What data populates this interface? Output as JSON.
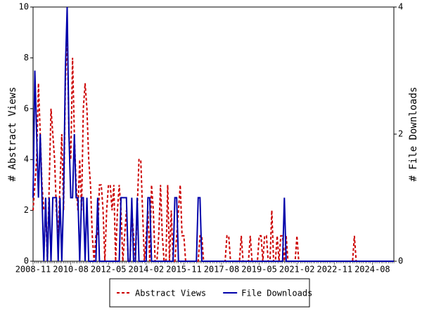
{
  "chart_data": {
    "type": "line",
    "categories": [
      "2008-11",
      null,
      null,
      null,
      null,
      null,
      null,
      null,
      null,
      null,
      null,
      null,
      null,
      null,
      null,
      null,
      null,
      null,
      null,
      null,
      null,
      "2010-08",
      null,
      null,
      null,
      null,
      null,
      null,
      null,
      null,
      null,
      null,
      null,
      null,
      null,
      null,
      null,
      null,
      null,
      null,
      null,
      null,
      "2012-05",
      null,
      null,
      null,
      null,
      null,
      null,
      null,
      null,
      null,
      null,
      null,
      null,
      null,
      null,
      null,
      null,
      null,
      null,
      null,
      null,
      "2014-02",
      null,
      null,
      null,
      null,
      null,
      null,
      null,
      null,
      null,
      null,
      null,
      null,
      null,
      null,
      null,
      null,
      null,
      null,
      null,
      null,
      "2015-11",
      null,
      null,
      null,
      null,
      null,
      null,
      null,
      null,
      null,
      null,
      null,
      null,
      null,
      null,
      null,
      null,
      null,
      null,
      null,
      null,
      "2017-08",
      null,
      null,
      null,
      null,
      null,
      null,
      null,
      null,
      null,
      null,
      null,
      null,
      null,
      null,
      null,
      null,
      null,
      null,
      null,
      null,
      "2019-05",
      null,
      null,
      null,
      null,
      null,
      null,
      null,
      null,
      null,
      null,
      null,
      null,
      null,
      null,
      null,
      null,
      null,
      null,
      null,
      null,
      "2021-02",
      null,
      null,
      null,
      null,
      null,
      null,
      null,
      null,
      null,
      null,
      null,
      null,
      null,
      null,
      null,
      null,
      null,
      null,
      null,
      null,
      "2022-11",
      null,
      null,
      null,
      null,
      null,
      null,
      null,
      null,
      null,
      null,
      null,
      null,
      null,
      null,
      null,
      null,
      null,
      null,
      null,
      null,
      "2024-08",
      null,
      null,
      null,
      null,
      null,
      null,
      null,
      null,
      null,
      null,
      null,
      null
    ],
    "series": [
      {
        "name": "Abstract Views",
        "color": "#cc0000",
        "dash": true,
        "values": [
          2,
          3,
          4,
          7,
          5,
          3,
          2,
          2,
          0,
          3,
          6,
          5,
          4,
          2,
          1,
          3,
          5,
          2,
          7,
          9,
          5,
          4,
          8,
          5,
          3,
          2,
          4,
          2,
          6,
          7,
          6,
          4,
          3,
          1,
          0,
          1,
          1,
          3,
          3,
          2,
          0,
          2,
          3,
          3,
          2,
          3,
          0,
          2,
          3,
          2,
          0,
          1,
          2,
          0,
          0,
          2,
          1,
          0,
          2,
          4,
          4,
          2,
          0,
          1,
          2,
          0,
          3,
          2,
          0,
          0,
          1,
          3,
          1,
          0,
          0,
          3,
          0,
          2,
          0,
          0,
          1,
          2,
          3,
          1,
          1,
          0,
          0,
          0,
          0,
          0,
          0,
          0,
          0,
          1,
          1,
          0,
          0,
          0,
          0,
          0,
          0,
          0,
          0,
          0,
          0,
          0,
          0,
          0,
          1,
          1,
          0,
          0,
          0,
          0,
          0,
          0,
          1,
          0,
          0,
          0,
          0,
          1,
          0,
          0,
          0,
          0,
          1,
          1,
          0,
          1,
          1,
          0,
          0,
          2,
          0,
          0,
          1,
          0,
          1,
          1,
          0,
          1,
          0,
          0,
          0,
          0,
          0,
          1,
          0,
          0,
          0,
          0,
          0,
          0,
          0,
          0,
          0,
          0,
          0,
          0,
          0,
          0,
          0,
          0,
          0,
          0,
          0,
          0,
          0,
          0,
          0,
          0,
          0,
          0,
          0,
          0,
          0,
          0,
          0,
          1,
          0,
          0,
          0,
          0,
          0,
          0,
          0,
          0,
          0,
          0,
          0,
          0,
          0,
          0,
          0,
          0,
          0,
          0,
          0,
          0,
          0,
          0
        ]
      },
      {
        "name": "File Downloads",
        "color": "#0000aa",
        "axis": "y2",
        "values": [
          1,
          3,
          2,
          1,
          2,
          1,
          0,
          1,
          0,
          1,
          0,
          1,
          1,
          1,
          0,
          1,
          0,
          1,
          3,
          4,
          2,
          1,
          1,
          2,
          1,
          1,
          0,
          1,
          1,
          0,
          1,
          0,
          0,
          0,
          0,
          0,
          1,
          0,
          0,
          0,
          0,
          0,
          0,
          0,
          0,
          0,
          0,
          0,
          0,
          1,
          1,
          1,
          1,
          0,
          0,
          1,
          0,
          0,
          1,
          0,
          0,
          0,
          0,
          0,
          1,
          1,
          0,
          0,
          0,
          0,
          0,
          0,
          0,
          0,
          0,
          0,
          0,
          0,
          0,
          1,
          1,
          0,
          0,
          0,
          0,
          0,
          0,
          0,
          0,
          0,
          0,
          0,
          1,
          1,
          0,
          0,
          0,
          0,
          0,
          0,
          0,
          0,
          0,
          0,
          0,
          0,
          0,
          0,
          0,
          0,
          0,
          0,
          0,
          0,
          0,
          0,
          0,
          0,
          0,
          0,
          0,
          0,
          0,
          0,
          0,
          0,
          0,
          0,
          0,
          0,
          0,
          0,
          0,
          0,
          0,
          0,
          0,
          0,
          0,
          0,
          1,
          0,
          0,
          0,
          0,
          0,
          0,
          0,
          0,
          0,
          0,
          0,
          0,
          0,
          0,
          0,
          0,
          0,
          0,
          0,
          0,
          0,
          0,
          0,
          0,
          0,
          0,
          0,
          0,
          0,
          0,
          0,
          0,
          0,
          0,
          0,
          0,
          0,
          0,
          0,
          0,
          0,
          0,
          0,
          0,
          0,
          0,
          0,
          0,
          0,
          0,
          0,
          0,
          0,
          0,
          0,
          0,
          0,
          0,
          0,
          0,
          0
        ]
      }
    ],
    "ylabel": "# Abstract Views",
    "y2label": "# File Downloads",
    "ylim": [
      0,
      10
    ],
    "yticks": [
      0,
      2,
      4,
      6,
      8,
      10
    ],
    "y2lim": [
      0,
      4
    ],
    "y2ticks": [
      0,
      2,
      4
    ],
    "legend": "bottom"
  }
}
